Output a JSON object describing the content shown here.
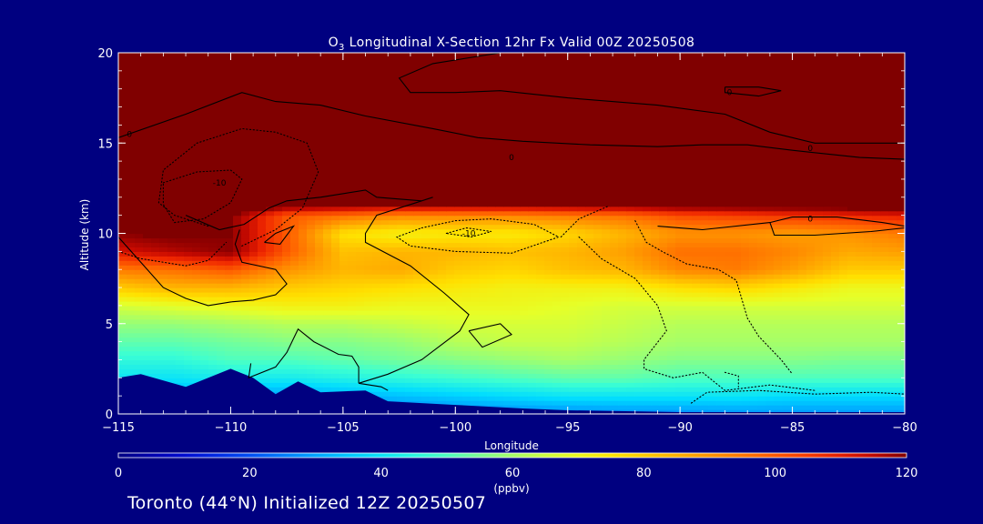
{
  "chart_data": {
    "type": "heatmap",
    "title_main": "O",
    "title_sub": "3",
    "title_rest": " Longitudinal X-Section 12hr  Fx Valid 00Z 20250508",
    "xlabel": "Longitude",
    "ylabel": "Altitude (km)",
    "xlim": [
      -115,
      -80
    ],
    "ylim": [
      0,
      20
    ],
    "xticks": [
      "−115",
      "−110",
      "−105",
      "−100",
      "−95",
      "−90",
      "−85",
      "−80"
    ],
    "xtick_values": [
      -115,
      -110,
      -105,
      -100,
      -95,
      -90,
      -85,
      -80
    ],
    "yticks": [
      "0",
      "5",
      "10",
      "15",
      "20"
    ],
    "ytick_values": [
      0,
      5,
      10,
      15,
      20
    ],
    "colorbar": {
      "min": 0,
      "max": 120,
      "ticks": [
        "0",
        "20",
        "40",
        "60",
        "80",
        "100",
        "120"
      ],
      "tick_values": [
        0,
        20,
        40,
        60,
        80,
        100,
        120
      ],
      "unit": "(ppbv)"
    },
    "contour_labels": [
      {
        "text": "0",
        "lon": -114.5,
        "alt": 15.5
      },
      {
        "text": "-10",
        "lon": -110.5,
        "alt": 12.8
      },
      {
        "text": "0",
        "lon": -97.5,
        "alt": 14.2
      },
      {
        "text": "0",
        "lon": -87.8,
        "alt": 17.8
      },
      {
        "text": "0",
        "lon": -84.2,
        "alt": 14.7
      },
      {
        "text": "-10",
        "lon": -99.4,
        "alt": 10.0
      },
      {
        "text": "0",
        "lon": -84.2,
        "alt": 10.8
      }
    ],
    "terrain": [
      [
        -115,
        2.0
      ],
      [
        -114,
        2.2
      ],
      [
        -112,
        1.5
      ],
      [
        -110,
        2.5
      ],
      [
        -109,
        2.0
      ],
      [
        -108,
        1.1
      ],
      [
        -107,
        1.8
      ],
      [
        -106,
        1.2
      ],
      [
        -104,
        1.3
      ],
      [
        -103,
        0.7
      ],
      [
        -100,
        0.5
      ],
      [
        -97,
        0.3
      ],
      [
        -95,
        0.2
      ],
      [
        -90,
        0.1
      ],
      [
        -85,
        0.1
      ],
      [
        -80,
        0.1
      ]
    ],
    "ozone_field_ppbv": {
      "lon": [
        -115,
        -112.5,
        -110,
        -107.5,
        -105,
        -102.5,
        -100,
        -97.5,
        -95,
        -92.5,
        -90,
        -87.5,
        -85,
        -82.5,
        -80
      ],
      "alt": [
        0,
        1,
        2,
        3,
        4,
        5,
        6,
        7,
        8,
        9,
        10,
        11,
        12,
        14,
        16,
        18,
        20
      ],
      "values": [
        [
          22,
          22,
          22,
          22,
          24,
          24,
          25,
          26,
          26,
          27,
          27,
          28,
          28,
          28,
          28
        ],
        [
          32,
          32,
          30,
          30,
          32,
          34,
          36,
          38,
          40,
          40,
          40,
          40,
          38,
          38,
          38
        ],
        [
          40,
          40,
          42,
          42,
          44,
          46,
          48,
          50,
          52,
          52,
          50,
          50,
          50,
          50,
          50
        ],
        [
          46,
          46,
          50,
          50,
          52,
          54,
          56,
          58,
          60,
          58,
          56,
          56,
          56,
          55,
          55
        ],
        [
          52,
          52,
          54,
          56,
          56,
          58,
          62,
          64,
          64,
          62,
          60,
          60,
          60,
          60,
          60
        ],
        [
          58,
          58,
          60,
          62,
          62,
          64,
          66,
          66,
          66,
          64,
          62,
          62,
          62,
          62,
          62
        ],
        [
          66,
          68,
          70,
          72,
          72,
          70,
          70,
          70,
          68,
          66,
          66,
          66,
          66,
          66,
          66
        ],
        [
          80,
          84,
          84,
          80,
          78,
          76,
          74,
          72,
          72,
          72,
          76,
          78,
          74,
          70,
          70
        ],
        [
          94,
          96,
          100,
          90,
          84,
          86,
          80,
          78,
          82,
          84,
          92,
          94,
          88,
          80,
          80
        ],
        [
          112,
          116,
          120,
          100,
          82,
          84,
          84,
          82,
          84,
          88,
          96,
          96,
          92,
          86,
          88
        ],
        [
          120,
          122,
          120,
          100,
          76,
          72,
          74,
          74,
          78,
          84,
          90,
          90,
          88,
          90,
          94
        ],
        [
          130,
          130,
          120,
          100,
          96,
          92,
          92,
          92,
          94,
          96,
          102,
          104,
          106,
          108,
          110
        ],
        [
          140,
          140,
          140,
          140,
          140,
          140,
          140,
          140,
          140,
          140,
          140,
          140,
          140,
          140,
          140
        ],
        [
          140,
          140,
          140,
          140,
          140,
          140,
          140,
          140,
          140,
          140,
          140,
          140,
          140,
          140,
          140
        ],
        [
          140,
          140,
          140,
          140,
          140,
          140,
          140,
          140,
          140,
          140,
          140,
          140,
          140,
          140,
          140
        ],
        [
          140,
          140,
          140,
          140,
          140,
          140,
          140,
          140,
          140,
          140,
          140,
          140,
          140,
          140,
          140
        ],
        [
          140,
          140,
          140,
          140,
          140,
          140,
          140,
          140,
          140,
          140,
          140,
          140,
          140,
          140,
          140
        ]
      ]
    },
    "contours": {
      "solid": [
        [
          [
            -115,
            15.3
          ],
          [
            -112,
            16.6
          ],
          [
            -109.5,
            17.8
          ],
          [
            -108,
            17.3
          ],
          [
            -106,
            17.1
          ],
          [
            -104,
            16.5
          ],
          [
            -101,
            15.8
          ],
          [
            -99,
            15.3
          ],
          [
            -97,
            15.1
          ],
          [
            -94,
            14.9
          ],
          [
            -91,
            14.8
          ],
          [
            -89,
            14.9
          ],
          [
            -87,
            14.9
          ],
          [
            -85,
            14.6
          ],
          [
            -82,
            14.2
          ],
          [
            -80,
            14.1
          ]
        ],
        [
          [
            -98,
            20
          ],
          [
            -101,
            19.4
          ],
          [
            -102.5,
            18.6
          ],
          [
            -102,
            17.8
          ],
          [
            -100,
            17.8
          ],
          [
            -98,
            17.9
          ],
          [
            -95,
            17.5
          ],
          [
            -91,
            17.1
          ],
          [
            -88,
            16.6
          ],
          [
            -86,
            15.6
          ],
          [
            -84,
            15.0
          ],
          [
            -80,
            15.0
          ]
        ],
        [
          [
            -112,
            11
          ],
          [
            -110.5,
            10.2
          ],
          [
            -109.4,
            10.5
          ],
          [
            -108.3,
            11.4
          ],
          [
            -107.5,
            11.8
          ],
          [
            -106,
            12.0
          ],
          [
            -104,
            12.4
          ],
          [
            -103.5,
            12.0
          ],
          [
            -101.5,
            11.8
          ],
          [
            -101,
            12.0
          ]
        ],
        [
          [
            -115,
            9.8
          ],
          [
            -114,
            8.4
          ],
          [
            -113,
            7.0
          ],
          [
            -112,
            6.4
          ],
          [
            -111,
            6.0
          ],
          [
            -110,
            6.2
          ],
          [
            -109,
            6.3
          ],
          [
            -108,
            6.6
          ],
          [
            -107.5,
            7.2
          ],
          [
            -108,
            8.0
          ],
          [
            -109.5,
            8.4
          ],
          [
            -109.8,
            9.4
          ],
          [
            -109.6,
            10.2
          ]
        ],
        [
          [
            -108.5,
            9.5
          ],
          [
            -108,
            10.0
          ],
          [
            -107.2,
            10.4
          ],
          [
            -107.8,
            9.4
          ],
          [
            -108.5,
            9.5
          ]
        ],
        [
          [
            -101.5,
            11.8
          ],
          [
            -103.5,
            11.0
          ],
          [
            -104,
            10.0
          ],
          [
            -104,
            9.5
          ],
          [
            -102,
            8.2
          ],
          [
            -100.5,
            6.7
          ],
          [
            -99.4,
            5.5
          ],
          [
            -99.8,
            4.6
          ],
          [
            -101.5,
            3.0
          ],
          [
            -103,
            2.2
          ],
          [
            -104.3,
            1.7
          ]
        ],
        [
          [
            -99.4,
            4.6
          ],
          [
            -98,
            5.0
          ],
          [
            -97.5,
            4.4
          ],
          [
            -98.8,
            3.7
          ],
          [
            -99.4,
            4.6
          ]
        ],
        [
          [
            -109.1,
            2.8
          ],
          [
            -109.2,
            2.0
          ],
          [
            -108,
            2.6
          ],
          [
            -107.5,
            3.4
          ],
          [
            -107,
            4.7
          ],
          [
            -106.3,
            4.0
          ],
          [
            -105.2,
            3.3
          ],
          [
            -104.6,
            3.2
          ],
          [
            -104.3,
            2.6
          ],
          [
            -104.3,
            1.7
          ]
        ],
        [
          [
            -104.3,
            1.7
          ],
          [
            -103.3,
            1.5
          ],
          [
            -103,
            1.3
          ]
        ],
        [
          [
            -91,
            10.4
          ],
          [
            -89,
            10.2
          ],
          [
            -86,
            10.6
          ],
          [
            -85,
            10.9
          ],
          [
            -83,
            10.9
          ],
          [
            -81,
            10.6
          ],
          [
            -80,
            10.4
          ]
        ],
        [
          [
            -86,
            10.6
          ],
          [
            -85.8,
            9.9
          ],
          [
            -84,
            9.9
          ],
          [
            -81.5,
            10.1
          ],
          [
            -80,
            10.3
          ]
        ],
        [
          [
            -88,
            18.1
          ],
          [
            -86.5,
            18.1
          ],
          [
            -85.5,
            17.9
          ],
          [
            -86.5,
            17.6
          ],
          [
            -88,
            17.8
          ],
          [
            -88,
            18.1
          ]
        ]
      ],
      "dotted": [
        [
          [
            -111,
            10.4
          ],
          [
            -112.5,
            11.0
          ],
          [
            -113.2,
            11.7
          ],
          [
            -113,
            13.5
          ],
          [
            -111.5,
            15.0
          ],
          [
            -109.5,
            15.8
          ],
          [
            -108,
            15.6
          ],
          [
            -106.6,
            15.0
          ],
          [
            -106.1,
            13.4
          ],
          [
            -106.8,
            11.4
          ],
          [
            -108,
            10.2
          ],
          [
            -109.5,
            9.3
          ]
        ],
        [
          [
            -113,
            12.8
          ],
          [
            -111.5,
            13.4
          ],
          [
            -110,
            13.5
          ],
          [
            -109.5,
            13.0
          ],
          [
            -110,
            11.7
          ],
          [
            -111.2,
            10.8
          ],
          [
            -112.5,
            10.6
          ],
          [
            -113,
            11.6
          ],
          [
            -113,
            12.8
          ]
        ],
        [
          [
            -115,
            9.0
          ],
          [
            -114,
            8.6
          ],
          [
            -112,
            8.2
          ],
          [
            -111,
            8.5
          ],
          [
            -110.2,
            9.5
          ]
        ],
        [
          [
            -101.5,
            10.3
          ],
          [
            -100,
            10.7
          ],
          [
            -98.4,
            10.8
          ],
          [
            -96.5,
            10.5
          ],
          [
            -95.4,
            9.8
          ],
          [
            -97.5,
            8.9
          ],
          [
            -100,
            9.0
          ],
          [
            -102,
            9.3
          ],
          [
            -102.6,
            9.8
          ],
          [
            -101.5,
            10.3
          ]
        ],
        [
          [
            -100.4,
            10.0
          ],
          [
            -99.5,
            10.3
          ],
          [
            -98.4,
            10.1
          ],
          [
            -99.3,
            9.8
          ],
          [
            -100.4,
            10.0
          ]
        ],
        [
          [
            -95.3,
            9.8
          ],
          [
            -94.5,
            10.8
          ],
          [
            -93.2,
            11.5
          ]
        ],
        [
          [
            -92,
            10.7
          ],
          [
            -91.5,
            9.5
          ],
          [
            -90.8,
            9.0
          ],
          [
            -89.7,
            8.3
          ],
          [
            -88.3,
            8.0
          ],
          [
            -87.5,
            7.4
          ],
          [
            -87,
            5.3
          ],
          [
            -86.5,
            4.3
          ],
          [
            -85.5,
            3.0
          ],
          [
            -85,
            2.2
          ]
        ],
        [
          [
            -94.5,
            9.8
          ],
          [
            -93.5,
            8.6
          ],
          [
            -92,
            7.5
          ],
          [
            -91,
            6.0
          ],
          [
            -90.6,
            4.6
          ],
          [
            -91.6,
            3.0
          ],
          [
            -91.6,
            2.5
          ],
          [
            -90.3,
            2.0
          ],
          [
            -89,
            2.3
          ],
          [
            -88,
            1.3
          ],
          [
            -86,
            1.6
          ],
          [
            -84,
            1.3
          ]
        ],
        [
          [
            -89.5,
            0.6
          ],
          [
            -88.8,
            1.2
          ],
          [
            -86.5,
            1.3
          ],
          [
            -84,
            1.1
          ],
          [
            -81.5,
            1.2
          ],
          [
            -80,
            1.1
          ]
        ],
        [
          [
            -88,
            2.3
          ],
          [
            -87.4,
            2.1
          ],
          [
            -87.4,
            1.5
          ]
        ]
      ]
    }
  },
  "footer": {
    "text": "Toronto (44°N) Initialized 12Z 20250507"
  }
}
